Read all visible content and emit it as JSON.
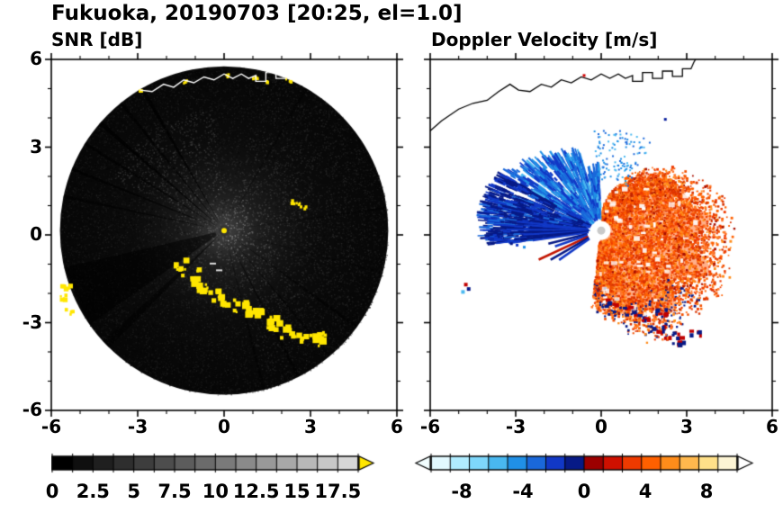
{
  "title": "Fukuoka, 20190703 [20:25, el=1.0]",
  "chart_data": [
    {
      "id": "snr",
      "type": "heatmap",
      "title": "SNR [dB]",
      "xlim": [
        -6,
        6
      ],
      "ylim": [
        -6,
        6
      ],
      "xtick_values": [
        -6,
        -3,
        0,
        3,
        6
      ],
      "xtick_labels": [
        "-6",
        "-3",
        "0",
        "3",
        "6"
      ],
      "ytick_values": [
        6,
        3,
        0,
        -3,
        -6
      ],
      "ytick_labels": [
        "6",
        "3",
        "0",
        "-3",
        "-6"
      ],
      "minor_tick_step": 1,
      "grid": false,
      "colorbar": {
        "orientation": "horizontal",
        "range": [
          0,
          18.75
        ],
        "segment_step": 1.25,
        "tick_values": [
          0,
          2.5,
          5,
          7.5,
          10,
          12.5,
          15,
          17.5
        ],
        "tick_labels": [
          "0",
          "2.5",
          "5",
          "7.5",
          "10",
          "12.5",
          "15",
          "17.5"
        ],
        "colors": [
          "#000000",
          "#0f0f0f",
          "#1f1f1f",
          "#2e2e2e",
          "#3d3d3d",
          "#4d4d4d",
          "#5c5c5c",
          "#6b6b6b",
          "#7a7a7a",
          "#8a8a8a",
          "#999999",
          "#a8a8a8",
          "#b8b8b8",
          "#c7c7c7",
          "#d6d6d6"
        ],
        "over_arrow_color": "#ffe600"
      },
      "scene": {
        "disk_base_color": "#070707",
        "clutter_color": "#ffe600",
        "coastline_color": "#ffffff",
        "description": "dark speckled radar PPI disk (radius ~5.7 km); brighter haze fan east of center and to the northwest; thin dark beam-blockage spokes to the northwest and a wide dark sector to the southwest; bright yellow ground-clutter arc curving across the south; yellow shoreline echoes along the northern coast; white coastline overlay at top"
      }
    },
    {
      "id": "velocity",
      "type": "heatmap",
      "title": "Doppler Velocity [m/s]",
      "xlim": [
        -6,
        6
      ],
      "ylim": [
        -6,
        6
      ],
      "xtick_values": [
        -6,
        -3,
        0,
        3,
        6
      ],
      "xtick_labels": [
        "-6",
        "-3",
        "0",
        "3",
        "6"
      ],
      "ytick_values": [
        6,
        3,
        0,
        -3,
        -6
      ],
      "minor_tick_step": 1,
      "grid": false,
      "colorbar": {
        "orientation": "horizontal",
        "range": [
          -10,
          10
        ],
        "segment_step": 1.25,
        "tick_values": [
          -8,
          -4,
          0,
          4,
          8
        ],
        "tick_labels": [
          "-8",
          "-4",
          "0",
          "4",
          "8"
        ],
        "colors": [
          "#e2f9ff",
          "#b0ecff",
          "#7ed7fb",
          "#49b8f0",
          "#2090e6",
          "#1a68da",
          "#1138c6",
          "#071a86",
          "#9c0000",
          "#cf1000",
          "#ee3a00",
          "#ff6000",
          "#ff8c1a",
          "#ffb84d",
          "#ffe089",
          "#fcf4d4"
        ],
        "under_arrow_color": "#f2feff",
        "over_arrow_color": "#ffffff"
      },
      "scene": {
        "negative_color_hint": "#1138c6",
        "positive_color_hint": "#ff6000",
        "coastline_color": "#000000",
        "description": "white background; blue fan of approaching velocities northwest of the radar with thin white gaps; dense dark-blue streaks due west and southwest; large speckled orange-red region of receding velocities east and southeast of the radar; paired dark-blue/red clutter blobs along the southern arc; isolated echoes far west; black coastline at top; white dot at radar location"
      }
    }
  ]
}
